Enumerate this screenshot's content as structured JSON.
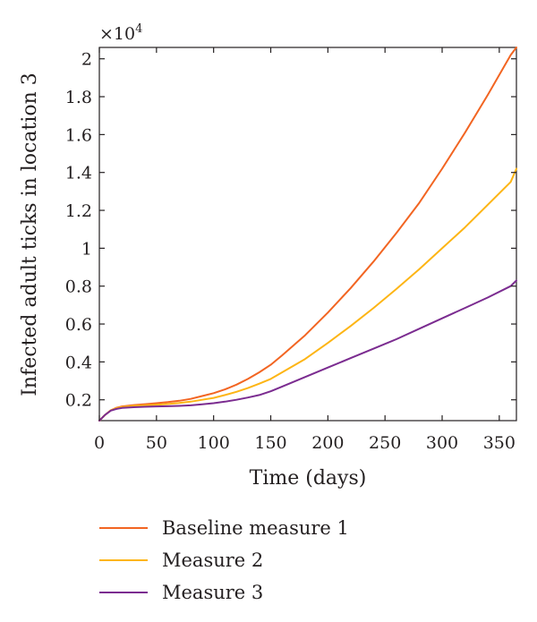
{
  "chart_data": {
    "type": "line",
    "title": "",
    "xlabel": "Time (days)",
    "ylabel": "Infected adult ticks in location 3",
    "y_multiplier_label": "×10",
    "y_multiplier_exponent": "4",
    "xlim": [
      0,
      365
    ],
    "ylim": [
      0.09,
      2.06
    ],
    "grid": false,
    "legend_position": "bottom",
    "x_ticks": [
      0,
      50,
      100,
      150,
      200,
      250,
      300,
      350
    ],
    "x_tick_labels": [
      "0",
      "50",
      "100",
      "150",
      "200",
      "250",
      "300",
      "350"
    ],
    "y_ticks": [
      0.2,
      0.4,
      0.6,
      0.8,
      1,
      1.2,
      1.4,
      1.6,
      1.8,
      2
    ],
    "y_tick_labels": [
      "0.2",
      "0.4",
      "0.6",
      "0.8",
      "1",
      "1.2",
      "1.4",
      "1.6",
      "1.8",
      "2"
    ],
    "series": [
      {
        "name": "Baseline measure 1",
        "color": "#f26522",
        "x": [
          0,
          5,
          10,
          15,
          20,
          30,
          40,
          50,
          60,
          70,
          80,
          90,
          100,
          110,
          120,
          130,
          140,
          150,
          160,
          180,
          200,
          220,
          240,
          260,
          280,
          300,
          320,
          340,
          360,
          365
        ],
        "y": [
          0.09,
          0.12,
          0.145,
          0.158,
          0.165,
          0.172,
          0.177,
          0.182,
          0.188,
          0.195,
          0.205,
          0.22,
          0.235,
          0.255,
          0.28,
          0.31,
          0.345,
          0.385,
          0.435,
          0.54,
          0.66,
          0.79,
          0.93,
          1.08,
          1.24,
          1.42,
          1.61,
          1.81,
          2.02,
          2.06
        ]
      },
      {
        "name": "Measure 2",
        "color": "#fdb515",
        "x": [
          0,
          5,
          10,
          15,
          20,
          30,
          40,
          50,
          60,
          70,
          80,
          90,
          100,
          110,
          120,
          130,
          140,
          150,
          160,
          180,
          200,
          220,
          240,
          260,
          280,
          300,
          320,
          340,
          360,
          365
        ],
        "y": [
          0.09,
          0.12,
          0.145,
          0.156,
          0.162,
          0.168,
          0.171,
          0.174,
          0.178,
          0.183,
          0.19,
          0.2,
          0.21,
          0.225,
          0.242,
          0.262,
          0.285,
          0.31,
          0.345,
          0.415,
          0.5,
          0.59,
          0.685,
          0.785,
          0.89,
          1.0,
          1.11,
          1.23,
          1.35,
          1.42
        ]
      },
      {
        "name": "Measure 3",
        "color": "#7b2c90",
        "x": [
          0,
          5,
          10,
          15,
          20,
          30,
          40,
          50,
          60,
          70,
          80,
          90,
          100,
          110,
          120,
          130,
          140,
          150,
          160,
          180,
          200,
          220,
          240,
          260,
          280,
          300,
          320,
          340,
          360,
          365
        ],
        "y": [
          0.09,
          0.12,
          0.143,
          0.152,
          0.157,
          0.161,
          0.163,
          0.165,
          0.166,
          0.168,
          0.171,
          0.176,
          0.182,
          0.19,
          0.2,
          0.212,
          0.225,
          0.245,
          0.27,
          0.32,
          0.37,
          0.42,
          0.47,
          0.52,
          0.575,
          0.63,
          0.685,
          0.74,
          0.8,
          0.83
        ]
      }
    ]
  }
}
